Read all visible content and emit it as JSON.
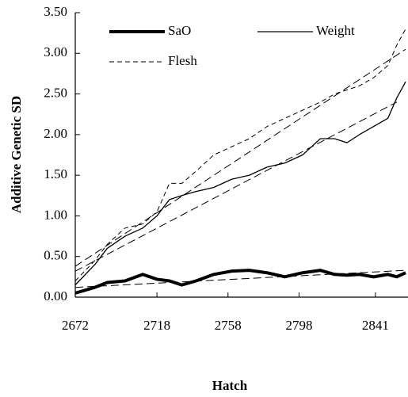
{
  "chart_data": {
    "type": "line",
    "x_label": "Hatch",
    "y_label": "Additive Genetic SD",
    "xlim": [
      2672,
      2858
    ],
    "xticks": [
      2672,
      2718,
      2758,
      2798,
      2841
    ],
    "ylim": [
      0,
      3.5
    ],
    "yticks": [
      {
        "value": 0,
        "label": "0.00"
      },
      {
        "value": 0.5,
        "label": "0.50"
      },
      {
        "value": 1,
        "label": "1.00"
      },
      {
        "value": 1.5,
        "label": "1.50"
      },
      {
        "value": 2,
        "label": "2.00"
      },
      {
        "value": 2.5,
        "label": "2.50"
      },
      {
        "value": 3,
        "label": "3.00"
      },
      {
        "value": 3.5,
        "label": "3.50"
      }
    ],
    "x": [
      2672,
      2683,
      2690,
      2700,
      2710,
      2718,
      2725,
      2732,
      2740,
      2750,
      2760,
      2770,
      2780,
      2790,
      2800,
      2810,
      2818,
      2825,
      2832,
      2840,
      2848,
      2853,
      2858
    ],
    "series": [
      {
        "name": "SaO",
        "color": "#000000",
        "width": 4,
        "dash": false,
        "values": [
          0.05,
          0.12,
          0.18,
          0.2,
          0.28,
          0.22,
          0.2,
          0.15,
          0.2,
          0.28,
          0.32,
          0.33,
          0.3,
          0.25,
          0.3,
          0.33,
          0.28,
          0.27,
          0.28,
          0.25,
          0.28,
          0.25,
          0.3
        ]
      },
      {
        "name": "Weight",
        "color": "#000000",
        "width": 1.3,
        "dash": false,
        "values": [
          0.15,
          0.4,
          0.6,
          0.75,
          0.85,
          1.0,
          1.2,
          1.25,
          1.3,
          1.35,
          1.45,
          1.5,
          1.6,
          1.65,
          1.75,
          1.95,
          1.95,
          1.9,
          2.0,
          2.1,
          2.2,
          2.45,
          2.65
        ]
      },
      {
        "name": "Flesh",
        "color": "#000000",
        "width": 1,
        "dash": true,
        "values": [
          0.2,
          0.45,
          0.65,
          0.85,
          0.9,
          1.05,
          1.4,
          1.4,
          1.55,
          1.75,
          1.85,
          1.95,
          2.1,
          2.2,
          2.3,
          2.4,
          2.5,
          2.55,
          2.6,
          2.7,
          2.85,
          3.1,
          3.3
        ]
      }
    ],
    "trendlines": [
      {
        "x": [
          2672,
          2858
        ],
        "values": [
          0.38,
          3.05
        ]
      },
      {
        "x": [
          2672,
          2853
        ],
        "values": [
          0.32,
          2.4
        ]
      },
      {
        "x": [
          2672,
          2858
        ],
        "values": [
          0.12,
          0.33
        ]
      }
    ]
  }
}
